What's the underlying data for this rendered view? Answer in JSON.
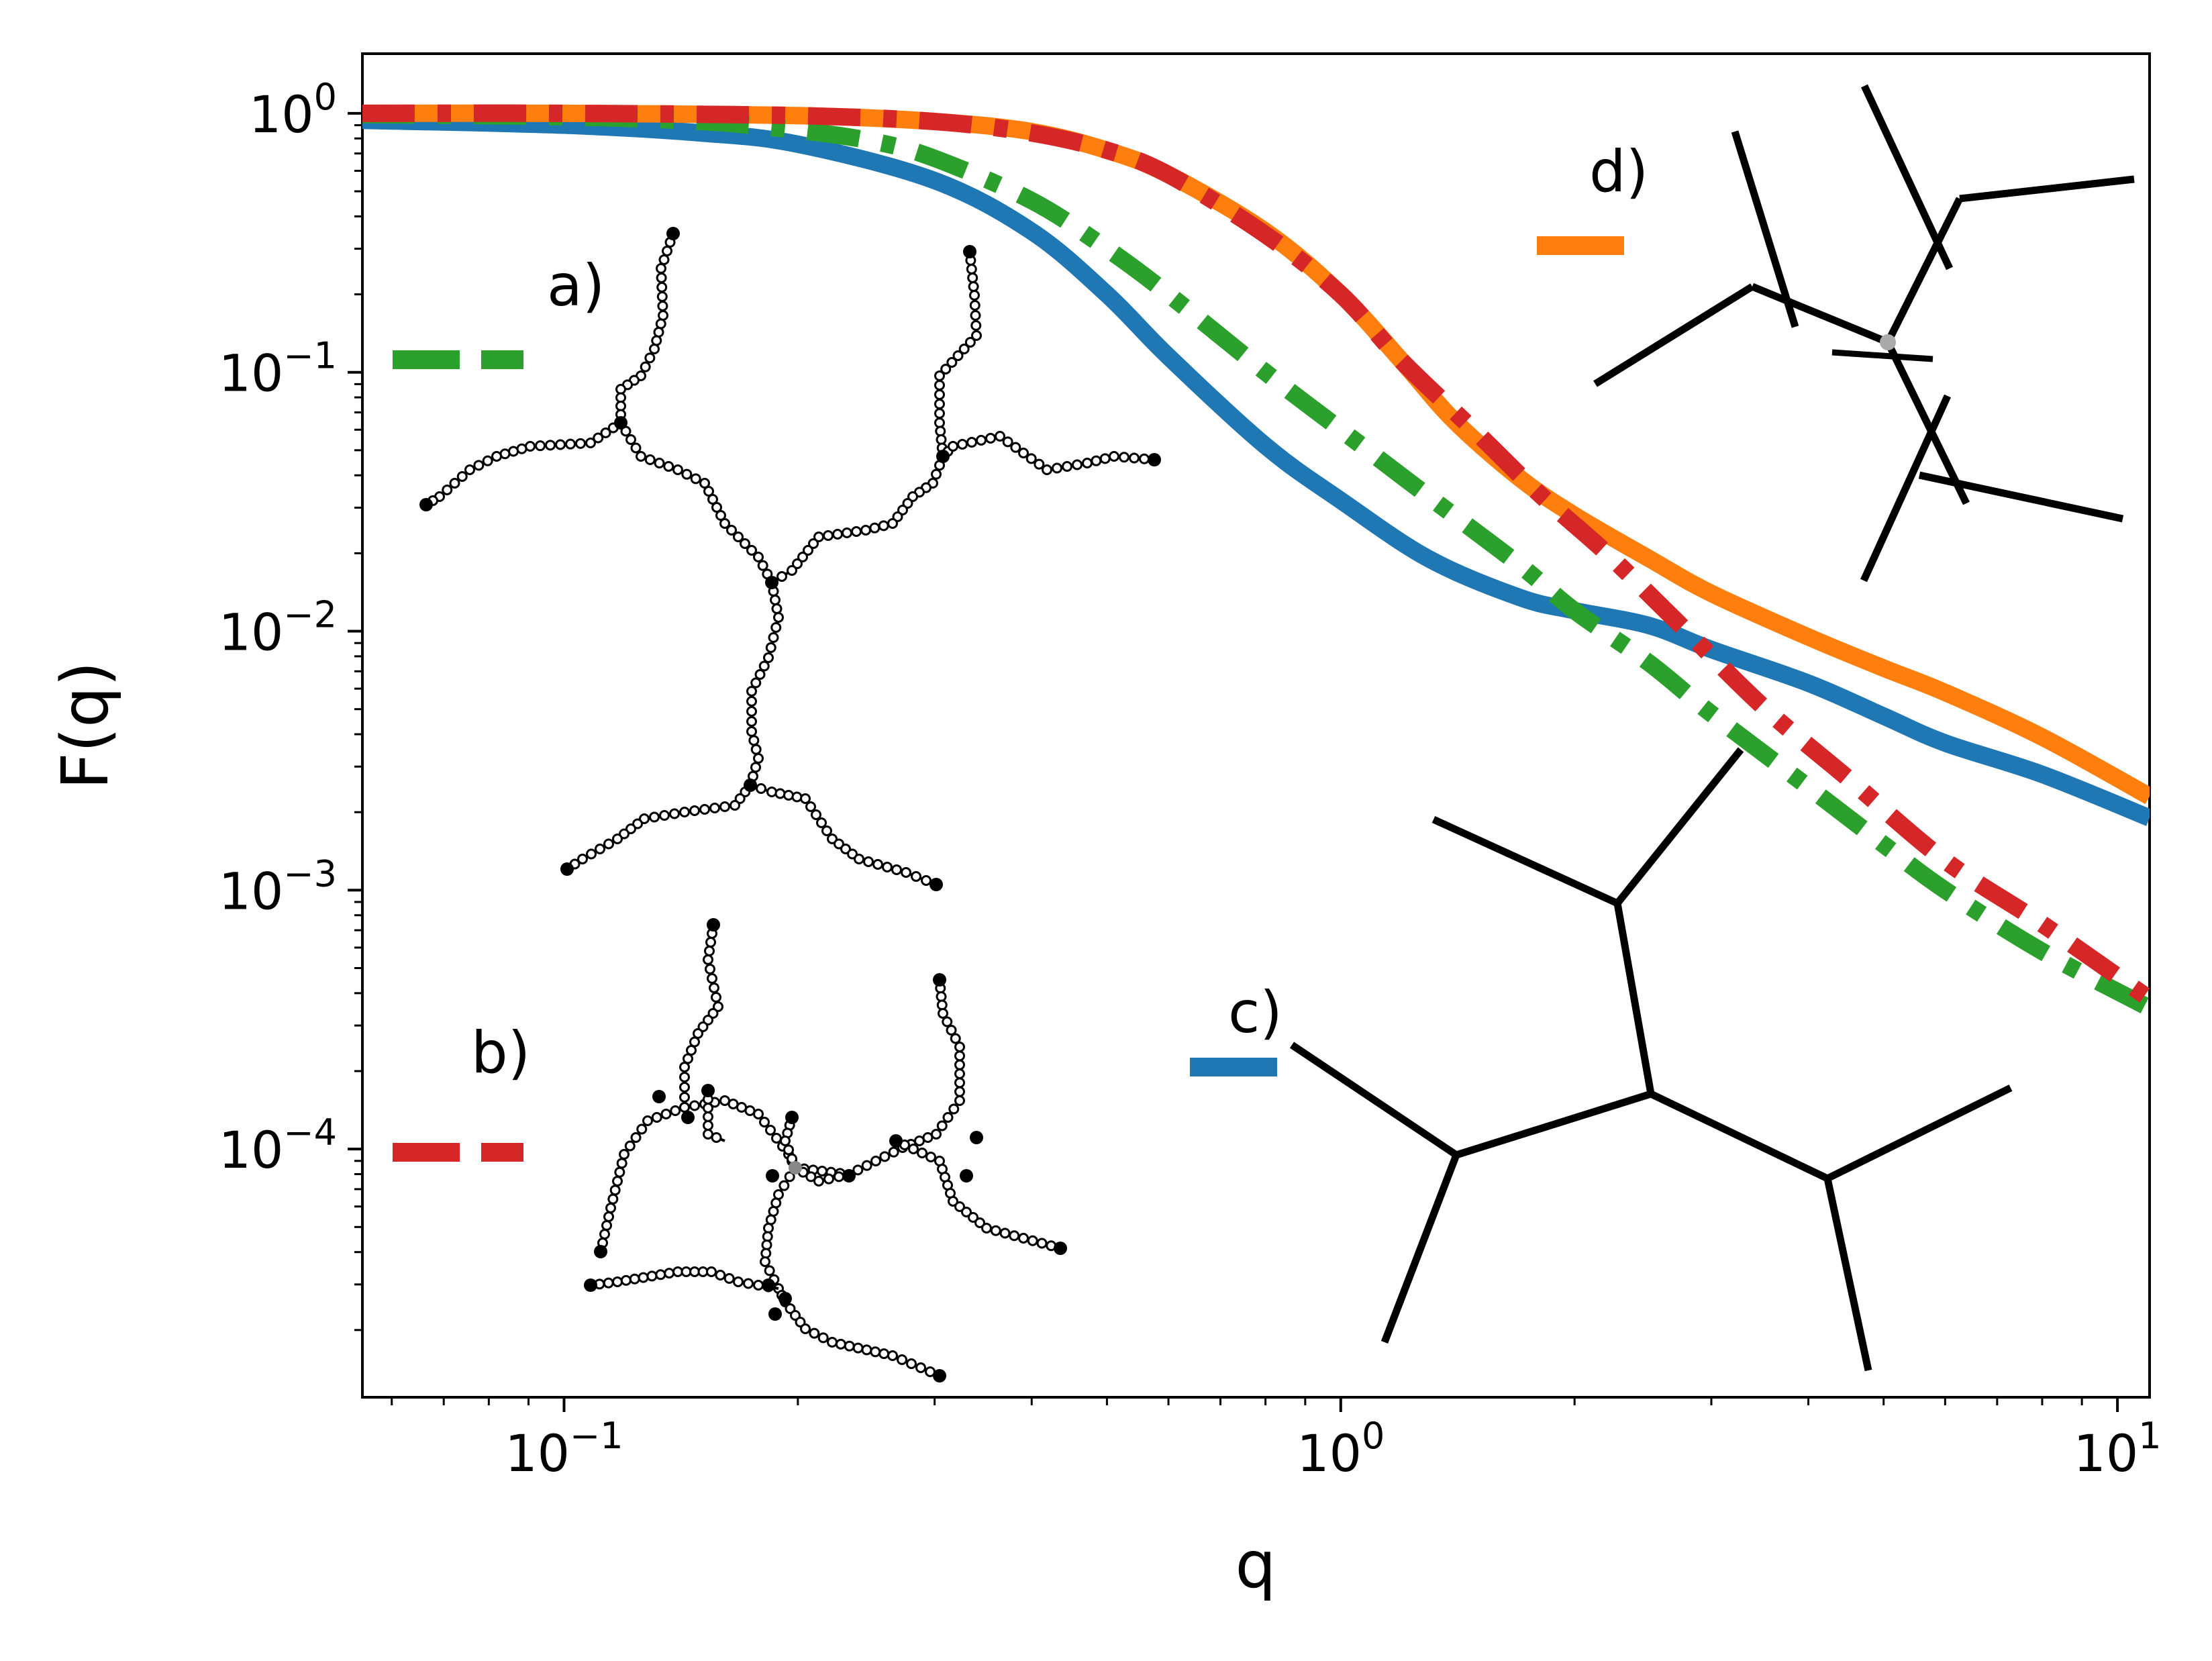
{
  "chart_data": {
    "type": "line",
    "title": "",
    "xlabel": "q",
    "ylabel": "F(q)",
    "xscale": "log",
    "yscale": "log",
    "xlim": [
      0.055,
      11
    ],
    "ylim": [
      1.1e-05,
      1.7
    ],
    "x_ticks": [
      {
        "base": "10",
        "exp": "−1",
        "value": 0.1
      },
      {
        "base": "10",
        "exp": "0",
        "value": 1
      },
      {
        "base": "10",
        "exp": "1",
        "value": 10
      }
    ],
    "y_ticks": [
      {
        "base": "10",
        "exp": "0",
        "value": 1
      },
      {
        "base": "10",
        "exp": "−1",
        "value": 0.1
      },
      {
        "base": "10",
        "exp": "−2",
        "value": 0.01
      },
      {
        "base": "10",
        "exp": "−3",
        "value": 0.001
      },
      {
        "base": "10",
        "exp": "−4",
        "value": 0.0001
      }
    ],
    "grid": false,
    "series": [
      {
        "panel": "c)",
        "color": "#1f77b4",
        "style": "solid",
        "x": [
          0.055,
          0.1,
          0.15,
          0.2,
          0.3,
          0.4,
          0.5,
          0.6,
          0.8,
          1.0,
          1.3,
          1.7,
          2.0,
          2.5,
          3.0,
          4.0,
          5.0,
          6.0,
          8.0,
          11.0
        ],
        "y": [
          0.94,
          0.9,
          0.84,
          0.76,
          0.55,
          0.35,
          0.2,
          0.115,
          0.052,
          0.032,
          0.019,
          0.0135,
          0.012,
          0.0105,
          0.0085,
          0.0063,
          0.0047,
          0.0037,
          0.0028,
          0.0019
        ]
      },
      {
        "panel": "d)",
        "color": "#ff7f0e",
        "style": "solid",
        "x": [
          0.055,
          0.1,
          0.2,
          0.3,
          0.4,
          0.5,
          0.6,
          0.8,
          1.0,
          1.2,
          1.4,
          1.7,
          2.0,
          2.5,
          3.0,
          4.0,
          5.0,
          6.0,
          8.0,
          11.0
        ],
        "y": [
          1.0,
          1.0,
          0.98,
          0.93,
          0.85,
          0.72,
          0.58,
          0.35,
          0.2,
          0.11,
          0.065,
          0.039,
          0.028,
          0.019,
          0.014,
          0.0095,
          0.0072,
          0.0058,
          0.0039,
          0.0023
        ]
      },
      {
        "panel": "a)",
        "color": "#2ca02c",
        "style": "dashdot",
        "x": [
          0.055,
          0.1,
          0.15,
          0.2,
          0.25,
          0.3,
          0.4,
          0.5,
          0.6,
          0.8,
          1.0,
          1.3,
          1.7,
          2.0,
          2.5,
          3.0,
          4.0,
          5.0,
          6.0,
          8.0,
          11.0
        ],
        "y": [
          0.99,
          0.97,
          0.93,
          0.86,
          0.78,
          0.67,
          0.46,
          0.3,
          0.2,
          0.1,
          0.06,
          0.033,
          0.018,
          0.012,
          0.0075,
          0.0048,
          0.0025,
          0.0015,
          0.001,
          0.00058,
          0.00035
        ]
      },
      {
        "panel": "b)",
        "color": "#d62728",
        "style": "dashdot",
        "x": [
          0.055,
          0.1,
          0.2,
          0.3,
          0.4,
          0.5,
          0.6,
          0.8,
          1.0,
          1.2,
          1.5,
          1.8,
          2.2,
          2.7,
          3.5,
          4.5,
          6.0,
          8.0,
          11.0
        ],
        "y": [
          1.0,
          1.0,
          0.98,
          0.93,
          0.84,
          0.72,
          0.58,
          0.34,
          0.2,
          0.11,
          0.058,
          0.034,
          0.02,
          0.011,
          0.0051,
          0.0027,
          0.0013,
          0.00074,
          0.00038
        ]
      }
    ]
  },
  "panels": {
    "a": {
      "label": "a)",
      "legend_color": "#2ca02c",
      "legend_style": "dashed"
    },
    "b": {
      "label": "b)",
      "legend_color": "#d62728",
      "legend_style": "dashed"
    },
    "c": {
      "label": "c)",
      "legend_color": "#1f77b4",
      "legend_style": "solid"
    },
    "d": {
      "label": "d)",
      "legend_color": "#ff7f0e",
      "legend_style": "solid"
    }
  }
}
